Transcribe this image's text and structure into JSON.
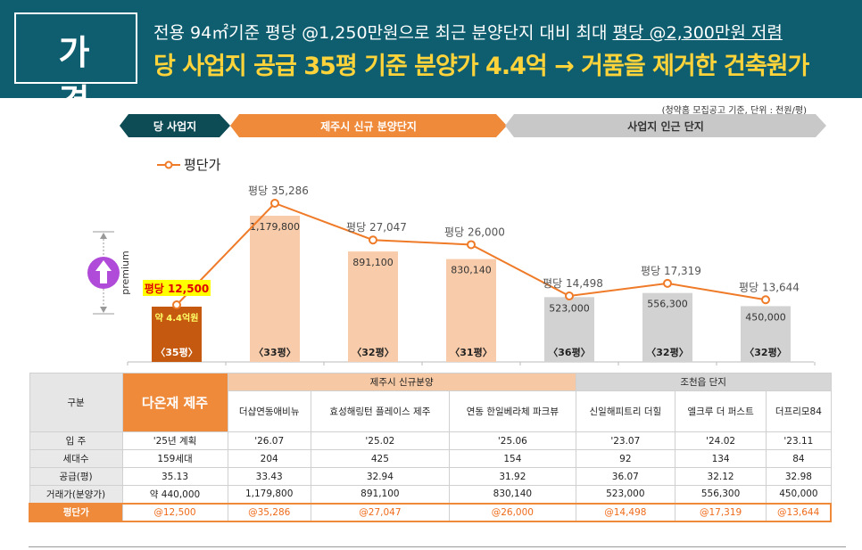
{
  "header": {
    "badge": "가 격",
    "line1_prefix": "전용 94㎡기준 평당 @1,250만원으로 최근 분양단지 대비 최대 ",
    "line1_highlight": "평당 @2,300만원 저렴",
    "line2": "당 사업지 공급 35평 기준 분양가 4.4억  → 거품을 제거한 건축원가"
  },
  "note": "(청약홈 모집공고 기준, 단위 : 천원/평)",
  "segments": {
    "site": "당 사업지",
    "jeju": "제주시 신규 분양단지",
    "nearby": "사업지 인근 단지"
  },
  "legend_label": "평단가",
  "premium_label": "premium",
  "colors": {
    "header_bg": "#0e5e6f",
    "accent_orange": "#ef8a3a",
    "site_bar": "#c4590f",
    "jeju_bar": "#f8ccaa",
    "nearby_bar": "#d2d2d2",
    "line": "#ef7a28",
    "highlight_yellow": "#ffff00"
  },
  "chart_data": {
    "type": "bar",
    "categories": [
      "다온재 제주",
      "더샵연동애비뉴",
      "효성해링턴 플레이스 제주",
      "연동 한일베라체 파크뷰",
      "신일해피트리 더힐",
      "엘크루 더 퍼스트",
      "더프리모84"
    ],
    "size_labels": [
      "〈35평〉",
      "〈33평〉",
      "〈32평〉",
      "〈31평〉",
      "〈36평〉",
      "〈32평〉",
      "〈32평〉"
    ],
    "bar_labels": [
      "약 4.4억원",
      "1,179,800",
      "891,100",
      "830,140",
      "523,000",
      "556,300",
      "450,000"
    ],
    "series": [
      {
        "name": "거래가(분양가)",
        "values": [
          440000,
          1179800,
          891100,
          830140,
          523000,
          556300,
          450000
        ]
      },
      {
        "name": "평단가",
        "values": [
          12500,
          35286,
          27047,
          26000,
          14498,
          17319,
          13644
        ]
      }
    ],
    "line_labels": [
      "평당 12,500",
      "평당 35,286",
      "평당 27,047",
      "평당 26,000",
      "평당 14,498",
      "평당 17,319",
      "평당 13,644"
    ]
  },
  "table": {
    "label_col": "구분",
    "main_name": "다온재 제주",
    "group1": "제주시 신규분양",
    "group2": "조천읍 단지",
    "names": [
      "더샵연동애비뉴",
      "효성해링턴 플레이스 제주",
      "연동 한일베라체 파크뷰",
      "신일해피트리 더힐",
      "엘크루 더 퍼스트",
      "더프리모84"
    ],
    "rows": [
      {
        "label": "입 주",
        "cells": [
          "'25년 계획",
          "'26.07",
          "'25.02",
          "'25.06",
          "'23.07",
          "'24.02",
          "'23.11"
        ]
      },
      {
        "label": "세대수",
        "cells": [
          "159세대",
          "204",
          "425",
          "154",
          "92",
          "134",
          "84"
        ]
      },
      {
        "label": "공급(평)",
        "cells": [
          "35.13",
          "33.43",
          "32.94",
          "31.92",
          "36.07",
          "32.12",
          "32.98"
        ]
      },
      {
        "label": "거래가(분양가)",
        "cells": [
          "약 440,000",
          "1,179,800",
          "891,100",
          "830,140",
          "523,000",
          "556,300",
          "450,000"
        ]
      },
      {
        "label": "평단가",
        "cells": [
          "@12,500",
          "@35,286",
          "@27,047",
          "@26,000",
          "@14,498",
          "@17,319",
          "@13,644"
        ]
      }
    ]
  }
}
